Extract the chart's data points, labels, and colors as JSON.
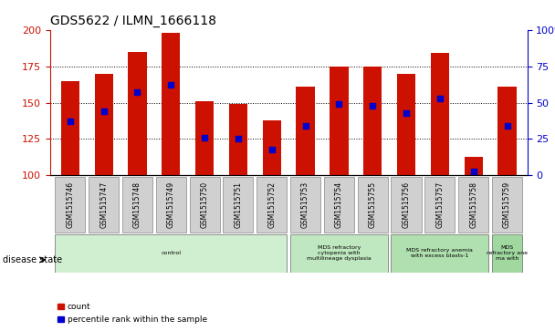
{
  "title": "GDS5622 / ILMN_1666118",
  "samples": [
    "GSM1515746",
    "GSM1515747",
    "GSM1515748",
    "GSM1515749",
    "GSM1515750",
    "GSM1515751",
    "GSM1515752",
    "GSM1515753",
    "GSM1515754",
    "GSM1515755",
    "GSM1515756",
    "GSM1515757",
    "GSM1515758",
    "GSM1515759"
  ],
  "counts": [
    165,
    170,
    185,
    198,
    151,
    149,
    138,
    161,
    175,
    175,
    170,
    184,
    113,
    161
  ],
  "percentiles": [
    37,
    44,
    57,
    62,
    26,
    25,
    18,
    34,
    49,
    48,
    43,
    53,
    3,
    34
  ],
  "ylim_left": [
    100,
    200
  ],
  "ylim_right": [
    0,
    100
  ],
  "yticks_left": [
    100,
    125,
    150,
    175,
    200
  ],
  "yticks_right": [
    0,
    25,
    50,
    75,
    100
  ],
  "bar_color": "#CC1100",
  "dot_color": "#0000CC",
  "disease_groups": [
    {
      "label": "control",
      "start": 0,
      "end": 7,
      "color": "#D0EED0"
    },
    {
      "label": "MDS refractory\ncytopenia with\nmultilineage dysplasia",
      "start": 7,
      "end": 10,
      "color": "#C0E8C0"
    },
    {
      "label": "MDS refractory anemia\nwith excess blasts-1",
      "start": 10,
      "end": 13,
      "color": "#B0E0B0"
    },
    {
      "label": "MDS\nrefractory ane\nma with",
      "start": 13,
      "end": 14,
      "color": "#A0D8A0"
    }
  ],
  "disease_state_label": "disease state",
  "legend_items": [
    {
      "label": "count",
      "color": "#CC1100"
    },
    {
      "label": "percentile rank within the sample",
      "color": "#0000CC"
    }
  ]
}
